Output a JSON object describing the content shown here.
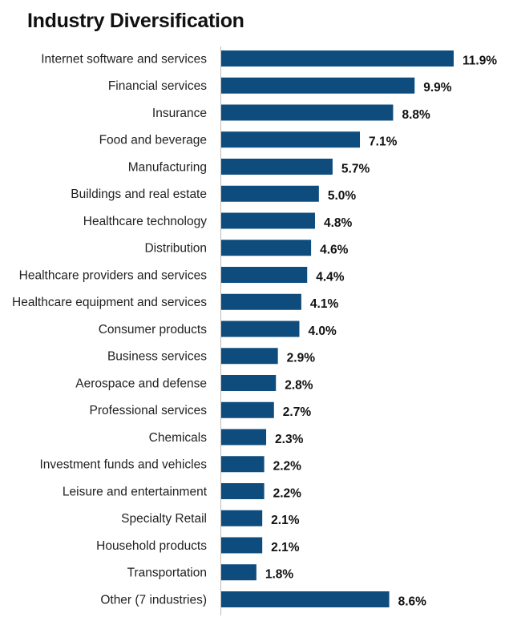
{
  "chart_data": {
    "type": "bar",
    "orientation": "horizontal",
    "title": "Industry Diversification",
    "unit": "%",
    "bar_color": "#0e4c7e",
    "categories": [
      "Internet software and services",
      "Financial services",
      "Insurance",
      "Food and beverage",
      "Manufacturing",
      "Buildings and real estate",
      "Healthcare technology",
      "Distribution",
      "Healthcare providers and services",
      "Healthcare equipment and services",
      "Consumer products",
      "Business services",
      "Aerospace and defense",
      "Professional services",
      "Chemicals",
      "Investment funds and vehicles",
      "Leisure and entertainment",
      "Specialty Retail",
      "Household products",
      "Transportation",
      "Other (7 industries)"
    ],
    "values": [
      11.9,
      9.9,
      8.8,
      7.1,
      5.7,
      5.0,
      4.8,
      4.6,
      4.4,
      4.1,
      4.0,
      2.9,
      2.8,
      2.7,
      2.3,
      2.2,
      2.2,
      2.1,
      2.1,
      1.8,
      8.6
    ],
    "value_labels": [
      "11.9%",
      "9.9%",
      "8.8%",
      "7.1%",
      "5.7%",
      "5.0%",
      "4.8%",
      "4.6%",
      "4.4%",
      "4.1%",
      "4.0%",
      "2.9%",
      "2.8%",
      "2.7%",
      "2.3%",
      "2.2%",
      "2.2%",
      "2.1%",
      "2.1%",
      "1.8%",
      "8.6%"
    ],
    "xlim": [
      0,
      11.9
    ],
    "grid": false,
    "legend": "none"
  }
}
